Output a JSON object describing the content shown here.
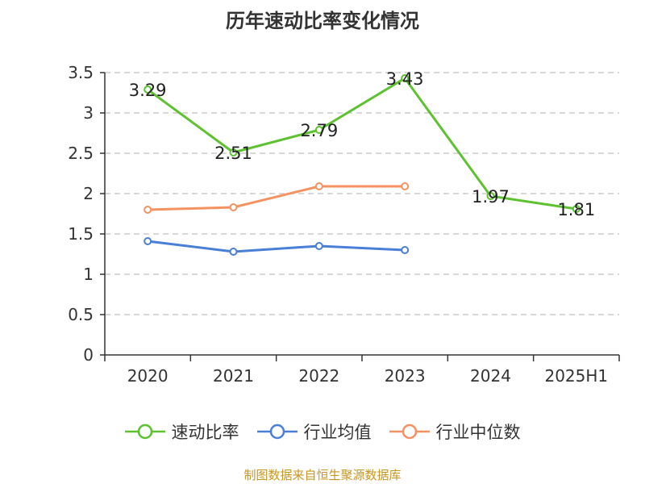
{
  "title": "历年速动比率变化情况",
  "source": "制图数据来自恒生聚源数据库",
  "colors": {
    "source_text": "#c8951f",
    "grid": "#cccccc",
    "axis": "#333333"
  },
  "chart_data": {
    "type": "line",
    "title": "历年速动比率变化情况",
    "categories": [
      "2020",
      "2021",
      "2022",
      "2023",
      "2024",
      "2025H1"
    ],
    "ylim": [
      0,
      3.5
    ],
    "yticks": [
      "0",
      "0.5",
      "1",
      "1.5",
      "2",
      "2.5",
      "3",
      "3.5"
    ],
    "grid": true,
    "legend_position": "bottom",
    "series": [
      {
        "name": "速动比率",
        "color": "#5cc22f",
        "values": [
          3.29,
          2.51,
          2.79,
          3.43,
          1.97,
          1.81
        ],
        "labels": [
          "3.29",
          "2.51",
          "2.79",
          "3.43",
          "1.97",
          "1.81"
        ]
      },
      {
        "name": "行业均值",
        "color": "#4a7fd8",
        "values": [
          1.41,
          1.28,
          1.35,
          1.3,
          null,
          null
        ]
      },
      {
        "name": "行业中位数",
        "color": "#f59262",
        "values": [
          1.8,
          1.83,
          2.09,
          2.09,
          null,
          null
        ]
      }
    ]
  }
}
